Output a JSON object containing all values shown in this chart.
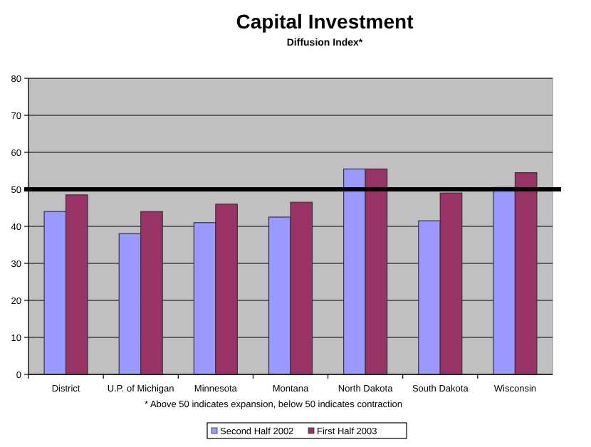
{
  "chart_data": {
    "type": "bar",
    "title": "Capital Investment",
    "subtitle": "Diffusion Index*",
    "categories": [
      "District",
      "U.P. of Michigan",
      "Minnesota",
      "Montana",
      "North Dakota",
      "South Dakota",
      "Wisconsin"
    ],
    "series": [
      {
        "name": "Second Half 2002",
        "color": "#9999ff",
        "values": [
          44,
          38,
          41,
          42.5,
          55.5,
          41.5,
          50.5
        ]
      },
      {
        "name": "First Half 2003",
        "color": "#993366",
        "values": [
          48.5,
          44,
          46,
          46.5,
          55.5,
          49,
          54.5
        ]
      }
    ],
    "ylim": [
      0,
      80
    ],
    "yticks": [
      0,
      10,
      20,
      30,
      40,
      50,
      60,
      70,
      80
    ],
    "grid": "y",
    "legend": "bottom",
    "ref_lines": [
      {
        "axis": "y",
        "value": 50,
        "color": "#000000"
      }
    ],
    "annotations": [
      "*  Above 50 indicates expansion, below 50 indicates contraction"
    ]
  }
}
